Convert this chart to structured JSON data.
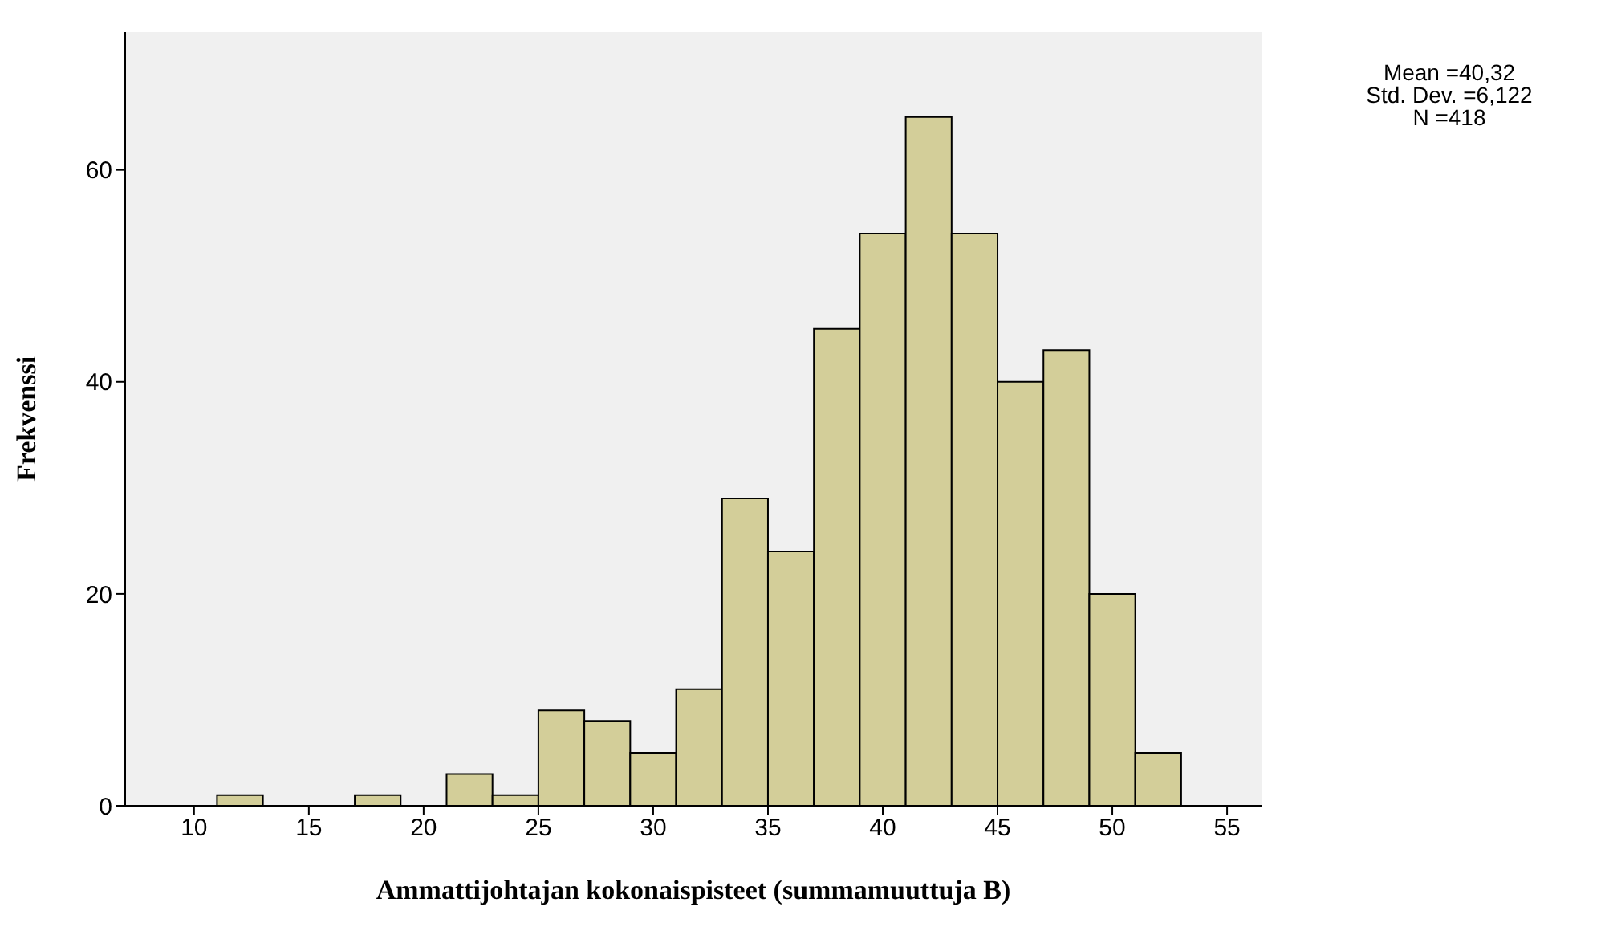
{
  "chart_data": {
    "type": "histogram",
    "xlabel": "Ammattijohtajan kokonaispisteet (summamuuttuja B)",
    "ylabel": "Frekvenssi",
    "bins": [
      11,
      13,
      15,
      17,
      19,
      21,
      23,
      25,
      27,
      29,
      31,
      33,
      35,
      37,
      39,
      41,
      43,
      45,
      47,
      49,
      51,
      53
    ],
    "values": [
      1,
      0,
      0,
      1,
      0,
      3,
      1,
      9,
      8,
      5,
      11,
      29,
      24,
      45,
      54,
      65,
      54,
      40,
      43,
      20,
      5
    ],
    "color": "#d3ce99",
    "xlim": [
      7,
      56.5
    ],
    "xticks": [
      10,
      15,
      20,
      25,
      30,
      35,
      40,
      45,
      50,
      55
    ],
    "ylim": [
      0,
      73
    ],
    "yticks": [
      0,
      20,
      40,
      60
    ],
    "annotations": [
      "Mean =40,32",
      "Std. Dev. =6,122",
      "N =418"
    ]
  }
}
